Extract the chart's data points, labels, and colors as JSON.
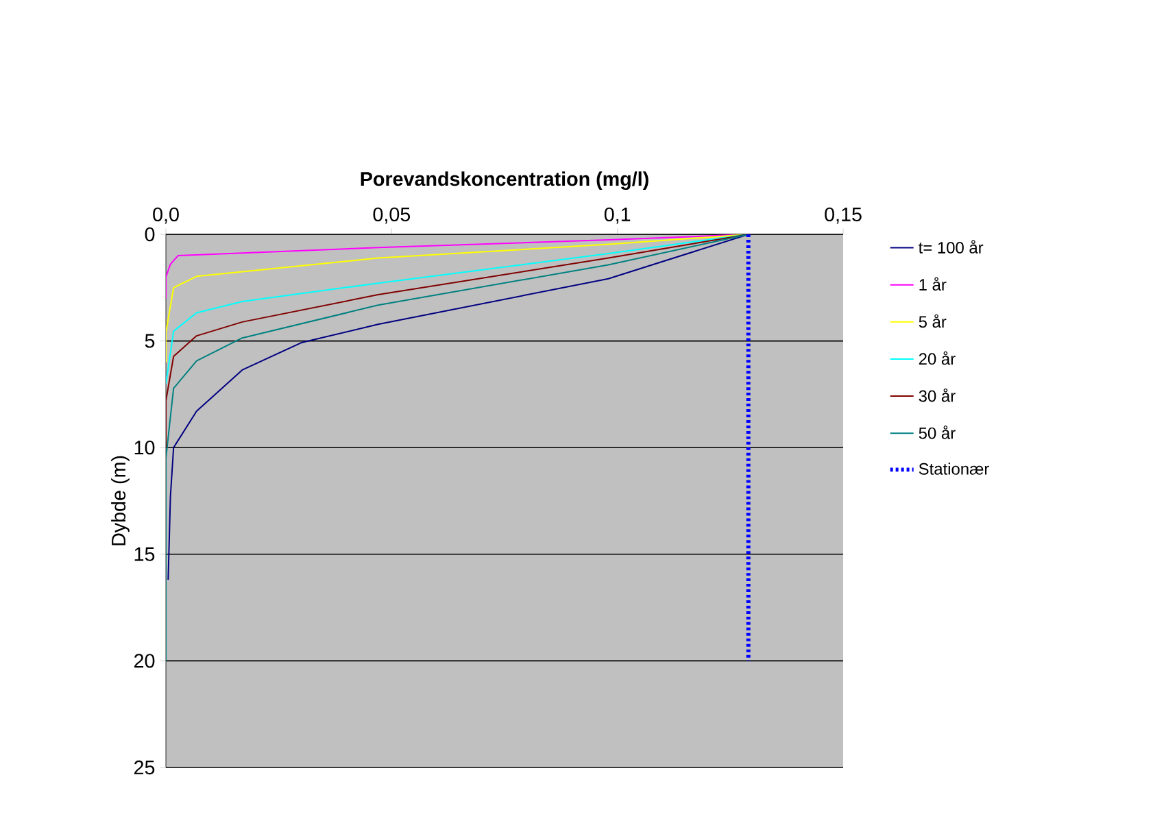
{
  "chart_data": {
    "type": "line",
    "xlabel": "Porevandskoncentration (mg/l)",
    "ylabel": "Dybde (m)",
    "xlim": [
      0,
      0.15
    ],
    "ylim": [
      25,
      0
    ],
    "xticks": [
      {
        "value": 0,
        "label": "0,0"
      },
      {
        "value": 0.05,
        "label": "0,05"
      },
      {
        "value": 0.1,
        "label": "0,1"
      },
      {
        "value": 0.15,
        "label": "0,15"
      }
    ],
    "yticks": [
      0,
      5,
      10,
      15,
      20,
      25
    ],
    "grid": "y",
    "legend": "right",
    "marker": "none",
    "series": [
      {
        "name": "t= 100 år",
        "color": "#000080",
        "x": [
          0.129,
          0.098,
          0.047,
          0.03,
          0.0169,
          0.0068,
          0.0017,
          0.001,
          0.0005
        ],
        "values": [
          0,
          2.08,
          4.22,
          5.08,
          6.36,
          8.29,
          10.0,
          12.3,
          16.2
        ]
      },
      {
        "name": "1 år",
        "color": "#ff00ff",
        "x": [
          0.129,
          0.098,
          0.047,
          0.0027,
          0.001,
          0,
          0
        ],
        "values": [
          0,
          0.26,
          0.62,
          1.0,
          1.4,
          2,
          3
        ]
      },
      {
        "name": "5 år",
        "color": "#ffff00",
        "x": [
          0.129,
          0.098,
          0.047,
          0.0068,
          0.0017,
          0,
          0
        ],
        "values": [
          0,
          0.47,
          1.11,
          1.97,
          2.5,
          4.6,
          6
        ]
      },
      {
        "name": "20 år",
        "color": "#00ffff",
        "x": [
          0.129,
          0.098,
          0.047,
          0.0169,
          0.0068,
          0.0017,
          0
        ],
        "values": [
          0,
          0.9,
          2.29,
          3.15,
          3.68,
          4.54,
          7
        ]
      },
      {
        "name": "30 år",
        "color": "#800000",
        "x": [
          0.129,
          0.098,
          0.047,
          0.0169,
          0.0068,
          0.0017,
          0,
          0
        ],
        "values": [
          0,
          1.11,
          2.83,
          4.11,
          4.76,
          5.72,
          7.8,
          10
        ]
      },
      {
        "name": "50 år",
        "color": "#008080",
        "x": [
          0.129,
          0.098,
          0.047,
          0.0169,
          0.0068,
          0.0017,
          0,
          0
        ],
        "values": [
          0,
          1.43,
          3.32,
          4.86,
          5.93,
          7.22,
          10.5,
          20
        ]
      },
      {
        "name": "Stationær",
        "color": "#0000ff",
        "line_style": "dotted",
        "x": [
          0.129,
          0.129
        ],
        "values": [
          0,
          20
        ]
      }
    ]
  }
}
